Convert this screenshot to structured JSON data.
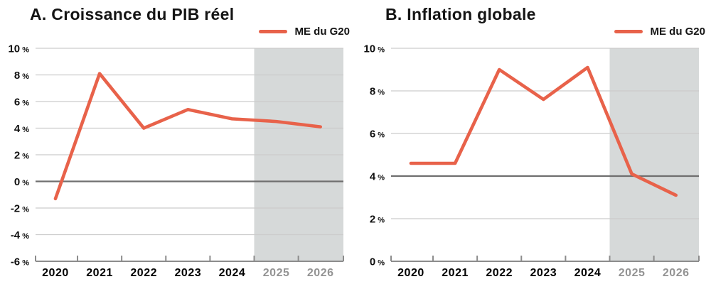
{
  "figure_title": "",
  "colors": {
    "line": "#e8624a",
    "gridline": "#cccccc",
    "reference_line": "#6f6f6f",
    "axis": "#8c8c8c",
    "forecast_band": "#d6d9d9",
    "text": "#141414",
    "forecast_label": "#939393"
  },
  "chart_data": [
    {
      "type": "line",
      "title": "A. Croissance du PIB réel",
      "legend_position": "top-right",
      "x": [
        2020,
        2021,
        2022,
        2023,
        2024,
        2025,
        2026
      ],
      "x_labels": [
        "2020",
        "2021",
        "2022",
        "2023",
        "2024",
        "2025",
        "2026"
      ],
      "series": [
        {
          "name": "ME du G20",
          "values": [
            -1.3,
            8.1,
            4.0,
            5.4,
            4.7,
            4.5,
            4.1
          ]
        }
      ],
      "xlabel": "",
      "ylabel": "",
      "unit": "%",
      "ylim": [
        -6,
        10
      ],
      "ytick_step": 2,
      "reference_line_y": 0,
      "forecast_start_x": 2024.5,
      "grid": "horizontal"
    },
    {
      "type": "line",
      "title": "B. Inflation globale",
      "legend_position": "top-right",
      "x": [
        2020,
        2021,
        2022,
        2023,
        2024,
        2025,
        2026
      ],
      "x_labels": [
        "2020",
        "2021",
        "2022",
        "2023",
        "2024",
        "2025",
        "2026"
      ],
      "series": [
        {
          "name": "ME du G20",
          "values": [
            4.6,
            4.6,
            9.0,
            7.6,
            9.1,
            4.1,
            3.1
          ]
        }
      ],
      "xlabel": "",
      "ylabel": "",
      "unit": "%",
      "ylim": [
        0,
        10
      ],
      "ytick_step": 2,
      "reference_line_y": 4,
      "forecast_start_x": 2024.5,
      "grid": "horizontal"
    }
  ]
}
